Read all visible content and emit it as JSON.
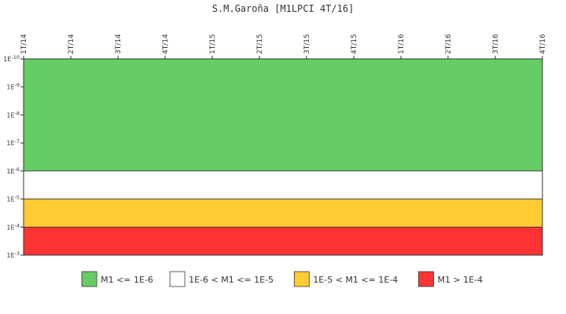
{
  "chart_data": {
    "type": "area",
    "title": "S.M.Garoña [M1LPCI 4T/16]",
    "xlabel": "",
    "ylabel": "",
    "x_axis_position": "top",
    "x_tick_labels": [
      "1T/14",
      "2T/14",
      "3T/14",
      "4T/14",
      "1T/15",
      "2T/15",
      "3T/15",
      "4T/15",
      "1T/16",
      "2T/16",
      "3T/16",
      "4T/16"
    ],
    "y_scale": "log",
    "y_ticks": [
      {
        "mantissa": "1E",
        "exp": "-10",
        "value": 1e-10
      },
      {
        "mantissa": "1E",
        "exp": "-9",
        "value": 1e-09
      },
      {
        "mantissa": "1E",
        "exp": "-8",
        "value": 1e-08
      },
      {
        "mantissa": "1E",
        "exp": "-7",
        "value": 1e-07
      },
      {
        "mantissa": "1E",
        "exp": "-6",
        "value": 1e-06
      },
      {
        "mantissa": "1E",
        "exp": "-5",
        "value": 1e-05
      },
      {
        "mantissa": "1E",
        "exp": "-4",
        "value": 0.0001
      },
      {
        "mantissa": "1E",
        "exp": "-3",
        "value": 0.001
      }
    ],
    "ylim": [
      1e-10,
      0.001
    ],
    "y_direction": "top-to-bottom increasing",
    "bands": [
      {
        "label": "M1 <= 1E-6",
        "from": 1e-10,
        "to": 1e-06,
        "color": "#66cc66"
      },
      {
        "label": "1E-6 < M1 <= 1E-5",
        "from": 1e-06,
        "to": 1e-05,
        "color": "#ffffff"
      },
      {
        "label": "1E-5 < M1 <= 1E-4",
        "from": 1e-05,
        "to": 0.0001,
        "color": "#ffcc33"
      },
      {
        "label": "M1 > 1E-4",
        "from": 0.0001,
        "to": 0.001,
        "color": "#ff3333"
      }
    ],
    "legend_position": "bottom-center",
    "grid": false
  }
}
